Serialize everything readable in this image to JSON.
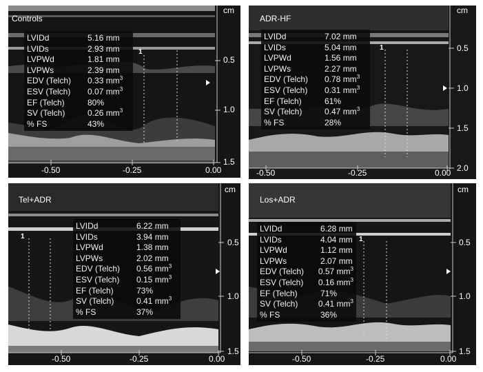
{
  "panels": [
    {
      "id": "controls",
      "title": "Controls",
      "unit": "cm",
      "marker": "1",
      "x_ticks": [
        "-0.50",
        "-0.25",
        "0.00"
      ],
      "y_ticks": [
        "0.5",
        "1.0",
        "1.5"
      ],
      "measurements": [
        {
          "k": "LVIDd",
          "v": "5.16 mm"
        },
        {
          "k": "LVIDs",
          "v": "2.93 mm"
        },
        {
          "k": "LVPWd",
          "v": "1.81 mm"
        },
        {
          "k": "LVPWs",
          "v": "2.39 mm"
        },
        {
          "k": "EDV (Telch)",
          "v": "0.33 mm",
          "sup": "3"
        },
        {
          "k": "ESV (Telch)",
          "v": "0.07 mm",
          "sup": "3"
        },
        {
          "k": "EF (Telch)",
          "v": "80%"
        },
        {
          "k": "SV (Telch)",
          "v": "0.26 mm",
          "sup": "3"
        },
        {
          "k": "% FS",
          "v": "43%"
        }
      ]
    },
    {
      "id": "adr-hf",
      "title": "ADR-HF",
      "unit": "cm",
      "marker": "1",
      "x_ticks": [
        "-0.50",
        "-0.25",
        "0.00"
      ],
      "y_ticks": [
        "0.5",
        "1.0",
        "1.5",
        "2.0"
      ],
      "measurements": [
        {
          "k": "LVIDd",
          "v": "7.02 mm"
        },
        {
          "k": "LVIDs",
          "v": "5.04 mm"
        },
        {
          "k": "LVPWd",
          "v": "1.56 mm"
        },
        {
          "k": "LVPWs",
          "v": "2.27 mm"
        },
        {
          "k": "EDV (Telch)",
          "v": "0.78 mm",
          "sup": "3"
        },
        {
          "k": "ESV (Telch)",
          "v": "0.31 mm",
          "sup": "3"
        },
        {
          "k": "EF (Telch)",
          "v": "61%"
        },
        {
          "k": "SV (Telch)",
          "v": "0.47 mm",
          "sup": "3"
        },
        {
          "k": "% FS",
          "v": "28%"
        }
      ]
    },
    {
      "id": "tel-adr",
      "title": "Tel+ADR",
      "unit": "cm",
      "marker": "1",
      "x_ticks": [
        "-0.50",
        "-0.25",
        "0.00"
      ],
      "y_ticks": [
        "0.5",
        "1.0",
        "1.5"
      ],
      "measurements": [
        {
          "k": "LVIDd",
          "v": "6.22 mm"
        },
        {
          "k": "LVIDs",
          "v": "3.94 mm"
        },
        {
          "k": "LVPWd",
          "v": "1.38 mm"
        },
        {
          "k": "LVPWs",
          "v": "2.02 mm"
        },
        {
          "k": "EDV (Telch)",
          "v": "0.56 mm",
          "sup": "3"
        },
        {
          "k": "ESV (Telch)",
          "v": "0.15 mm",
          "sup": "3"
        },
        {
          "k": "EF (Telch)",
          "v": "73%"
        },
        {
          "k": "SV (Telch)",
          "v": "0.41 mm",
          "sup": "3"
        },
        {
          "k": "% FS",
          "v": "37%"
        }
      ]
    },
    {
      "id": "los-adr",
      "title": "Los+ADR",
      "unit": "cm",
      "marker": "1",
      "x_ticks": [
        "-0.50",
        "-0.25",
        "0.00"
      ],
      "y_ticks": [
        "0.5",
        "1.0",
        "1.5"
      ],
      "measurements": [
        {
          "k": "LVIDd",
          "v": "6.28 mm"
        },
        {
          "k": "LVIDs",
          "v": "4.04 mm"
        },
        {
          "k": "LVPWd",
          "v": "1.12 mm"
        },
        {
          "k": "LVPWs",
          "v": "2.07 mm"
        },
        {
          "k": "EDV (Telch)",
          "v": "0.57 mm",
          "sup": "3"
        },
        {
          "k": "ESV (Telch)",
          "v": "0.16 mm",
          "sup": "3"
        },
        {
          "k": "EF (Telch)",
          "v": "71%"
        },
        {
          "k": "SV (Telch)",
          "v": "0.41 mm",
          "sup": "3"
        },
        {
          "k": "% FS",
          "v": "36%"
        }
      ]
    }
  ]
}
